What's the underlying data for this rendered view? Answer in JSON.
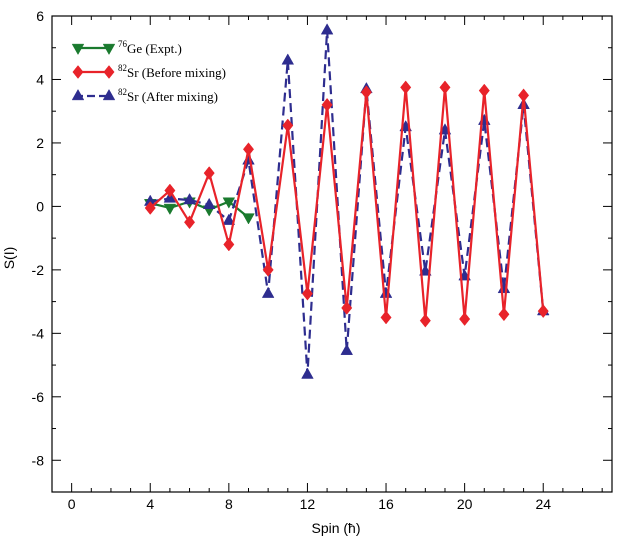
{
  "chart_data": {
    "type": "line",
    "title": "",
    "xlabel": "Spin (ħ)",
    "ylabel": "S(I)",
    "xlim": [
      -1,
      27.5
    ],
    "ylim": [
      -9,
      6
    ],
    "xticks": [
      0,
      4,
      8,
      12,
      16,
      20,
      24
    ],
    "yticks": [
      6,
      4,
      2,
      0,
      -2,
      -4,
      -6,
      -8
    ],
    "xtick_labels": [
      "0",
      "4",
      "8",
      "12",
      "16",
      "20",
      "24"
    ],
    "ytick_labels": [
      "6",
      "4",
      "2",
      "0",
      "-2",
      "-4",
      "-6",
      "-8"
    ],
    "grid": false,
    "legend_position": "top-left",
    "series": [
      {
        "name": "⁷⁶Ge (Expt.)",
        "name_sup": "76",
        "name_main": "Ge (Expt.)",
        "color": "#1a7a2e",
        "marker": "triangle-down",
        "line": "solid",
        "x": [
          4,
          5,
          6,
          7,
          8,
          9
        ],
        "y": [
          0.1,
          -0.05,
          0.15,
          -0.1,
          0.15,
          -0.35
        ]
      },
      {
        "name": "⁸²Sr (Before mixing)",
        "name_sup": "82",
        "name_main": "Sr (Before mixing)",
        "color": "#e8232a",
        "marker": "diamond",
        "line": "solid",
        "x": [
          4,
          5,
          6,
          7,
          8,
          9,
          10,
          11,
          12,
          13,
          14,
          15,
          16,
          17,
          18,
          19,
          20,
          21,
          22,
          23,
          24
        ],
        "y": [
          -0.05,
          0.5,
          -0.5,
          1.05,
          -1.2,
          1.8,
          -2.0,
          2.55,
          -2.75,
          3.2,
          -3.2,
          3.6,
          -3.5,
          3.75,
          -3.6,
          3.75,
          -3.55,
          3.65,
          -3.4,
          3.5,
          -3.3
        ]
      },
      {
        "name": "⁸²Sr (After mixing)",
        "name_sup": "82",
        "name_main": "Sr (After mixing)",
        "color": "#2e2d8f",
        "marker": "triangle-up",
        "line": "dashed",
        "x": [
          4,
          5,
          6,
          7,
          8,
          9,
          10,
          11,
          12,
          13,
          14,
          15,
          16,
          17,
          18,
          19,
          20,
          21,
          22,
          23,
          24
        ],
        "y": [
          0.15,
          0.25,
          0.2,
          0.05,
          -0.45,
          1.45,
          -2.75,
          4.6,
          -5.3,
          5.55,
          -4.55,
          3.7,
          -2.75,
          2.5,
          -2.05,
          2.4,
          -2.2,
          2.7,
          -2.6,
          3.2,
          -3.3
        ]
      }
    ]
  }
}
